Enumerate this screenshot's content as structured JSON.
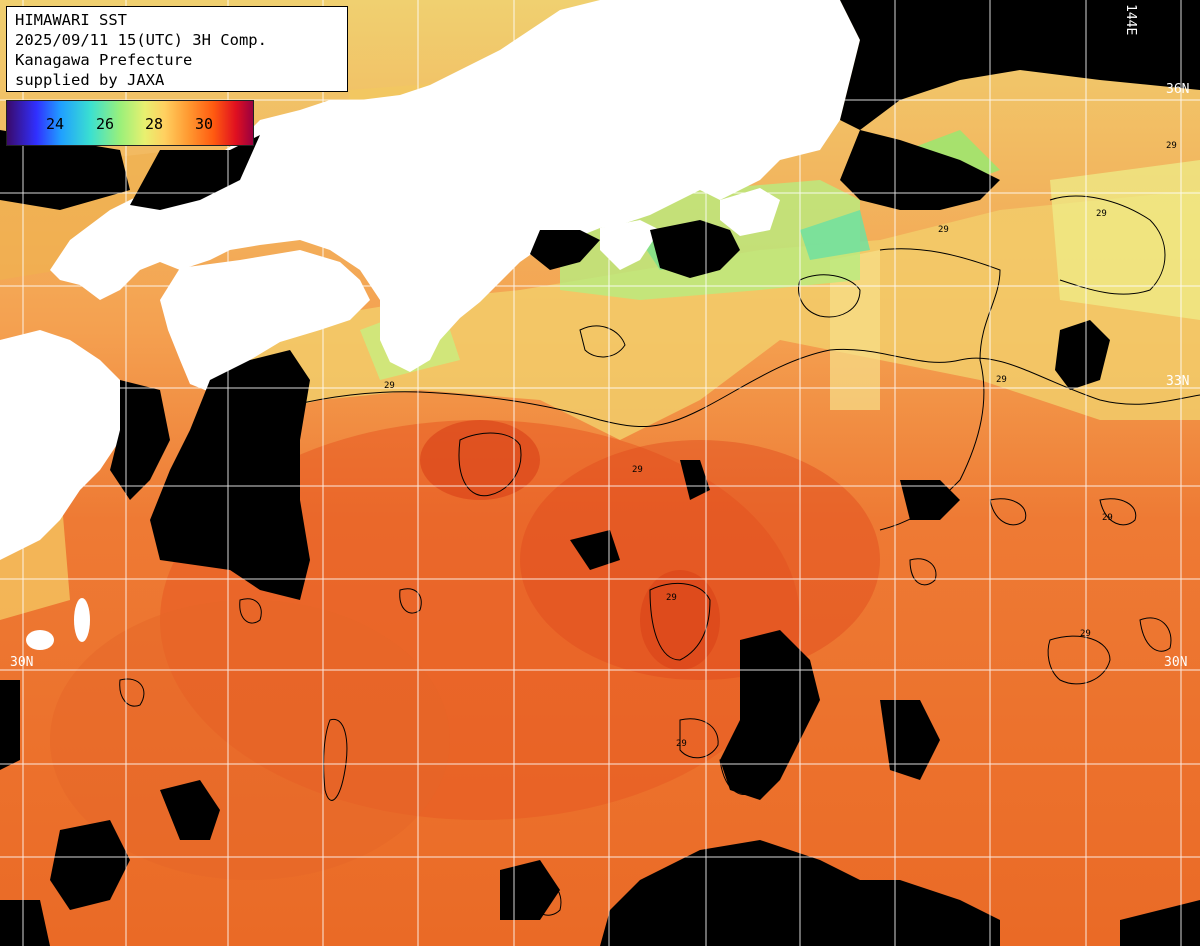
{
  "header": {
    "line1": "HIMAWARI SST",
    "line2": "2025/09/11 15(UTC) 3H Comp.",
    "line3": "Kanagawa Prefecture",
    "line4": "supplied by JAXA"
  },
  "colorbar": {
    "ticks": [
      "24",
      "26",
      "28",
      "30"
    ]
  },
  "gridlabels": {
    "lat_36": "36N",
    "lat_33": "33N",
    "lat_30": "30N",
    "lon_144": "144E"
  },
  "contour_label": "29",
  "colors": {
    "land": "#ffffff",
    "nodata": "#000000",
    "sst_cool": "#9ae870",
    "sst_warm": "#f0a050",
    "sst_hot": "#ee6a28",
    "sst_hottest": "#dd4a1e"
  }
}
